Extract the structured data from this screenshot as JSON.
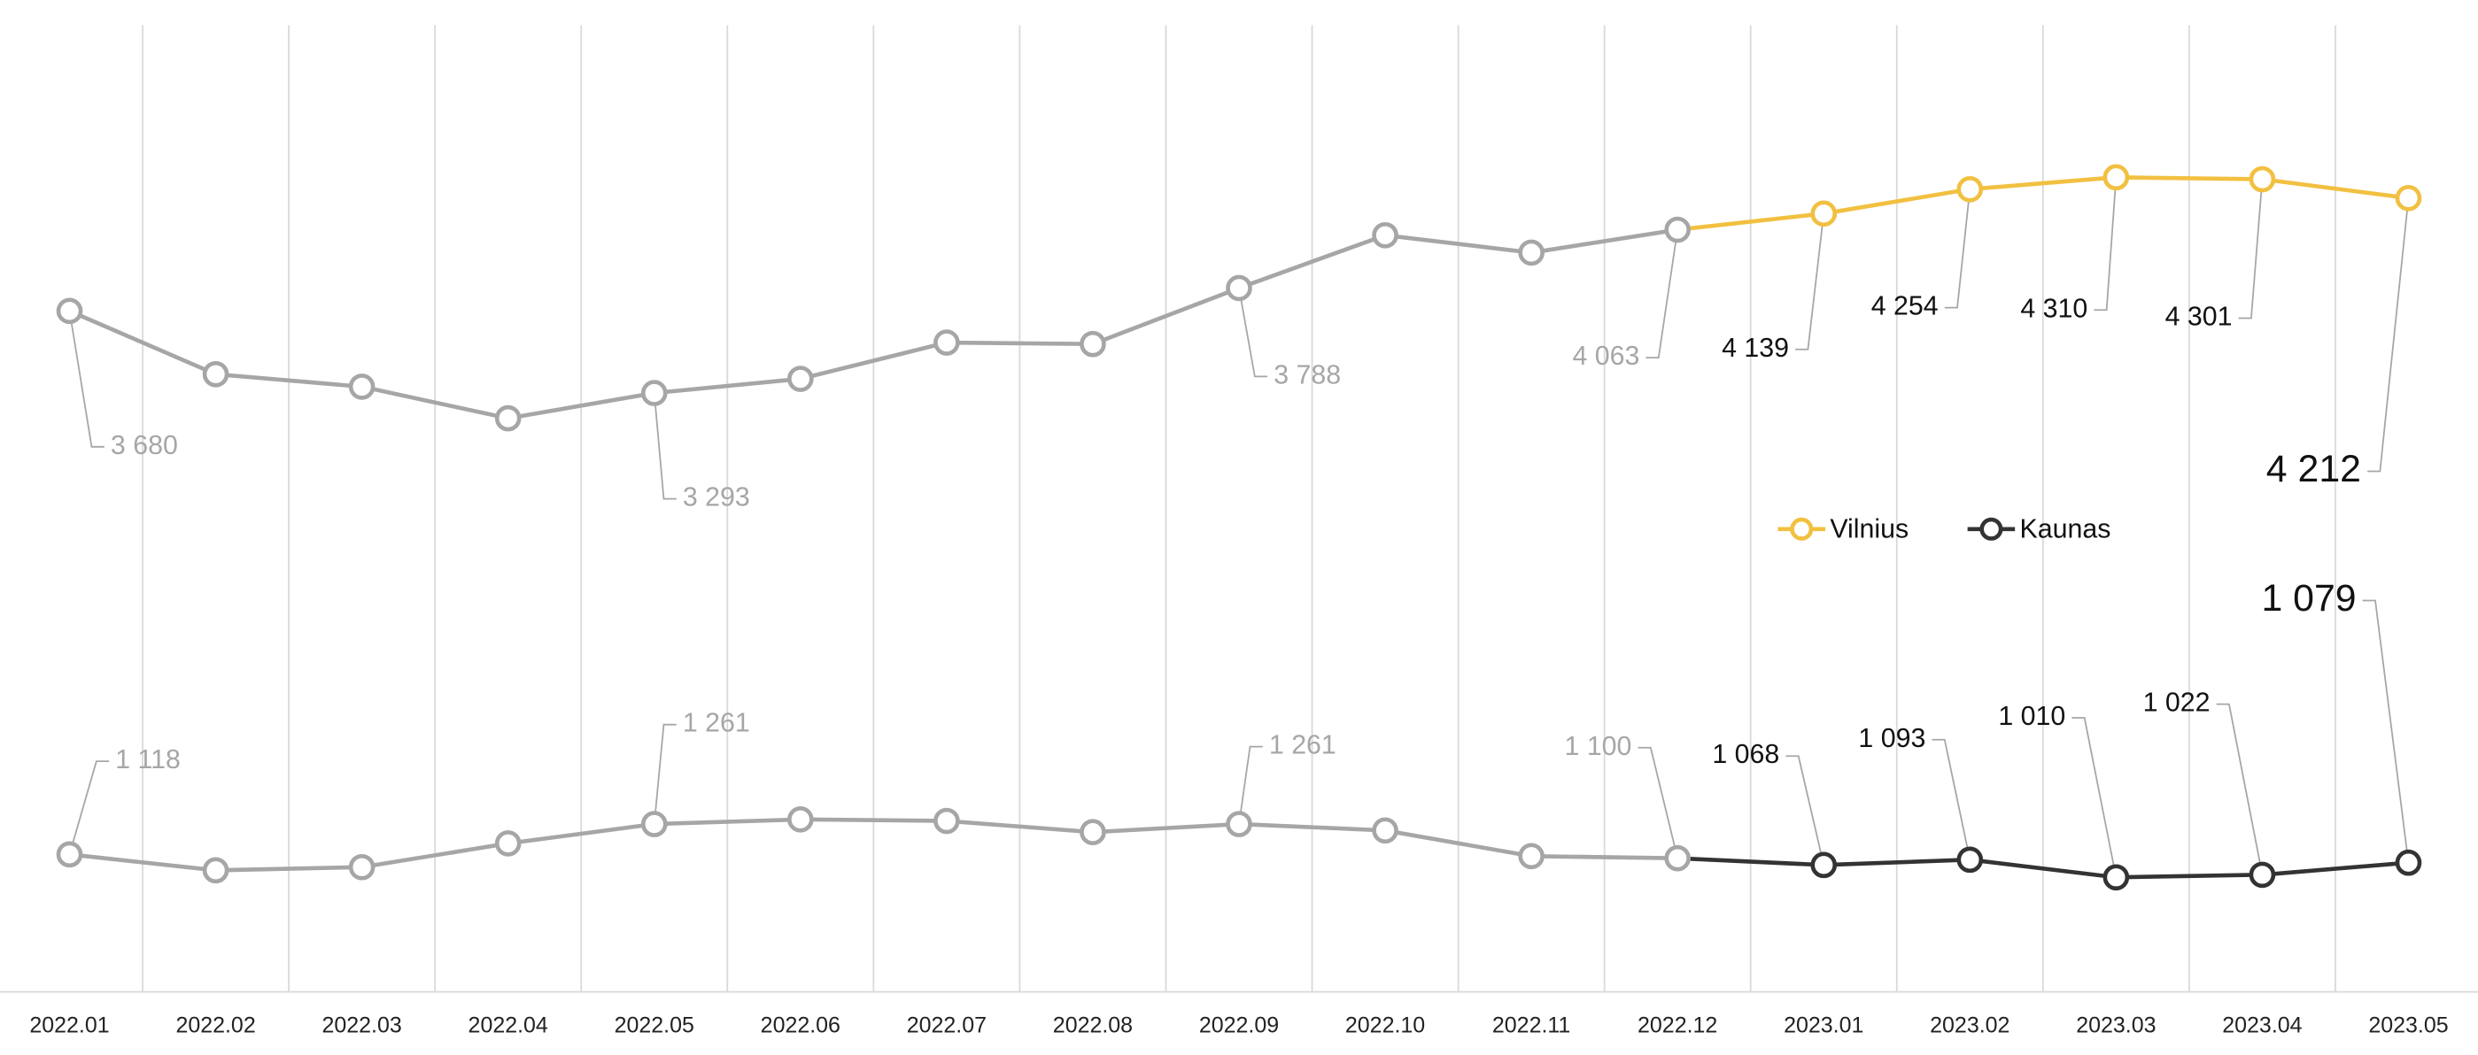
{
  "chart_data": {
    "type": "line",
    "categories": [
      "2022.01",
      "2022.02",
      "2022.03",
      "2022.04",
      "2022.05",
      "2022.06",
      "2022.07",
      "2022.08",
      "2022.09",
      "2022.10",
      "2022.11",
      "2022.12",
      "2023.01",
      "2023.02",
      "2023.03",
      "2023.04",
      "2023.05"
    ],
    "series": [
      {
        "name": "Vilnius",
        "color": "#f2c040",
        "values": [
          3680,
          3382,
          3323,
          3174,
          3293,
          3360,
          3531,
          3524,
          3788,
          4037,
          3955,
          4063,
          4139,
          4254,
          4310,
          4301,
          4212
        ],
        "value_labels": [
          "3 680",
          null,
          null,
          null,
          "3 293",
          null,
          null,
          null,
          "3 788",
          null,
          null,
          "4 063",
          "4 139",
          "4 254",
          "4 310",
          "4 301",
          "4 212"
        ]
      },
      {
        "name": "Kaunas",
        "color": "#333333",
        "values": [
          1118,
          1043,
          1058,
          1170,
          1261,
          1283,
          1276,
          1223,
          1261,
          1231,
          1110,
          1100,
          1068,
          1093,
          1010,
          1022,
          1079
        ],
        "value_labels": [
          "1 118",
          null,
          null,
          null,
          "1 261",
          null,
          null,
          null,
          "1 261",
          null,
          null,
          "1 100",
          "1 068",
          "1 093",
          "1 010",
          "1 022",
          "1 079"
        ]
      }
    ],
    "muted_color": "#a6a6a6",
    "highlight_from": 12,
    "ylim": [
      500,
      5000
    ],
    "grid": true
  }
}
